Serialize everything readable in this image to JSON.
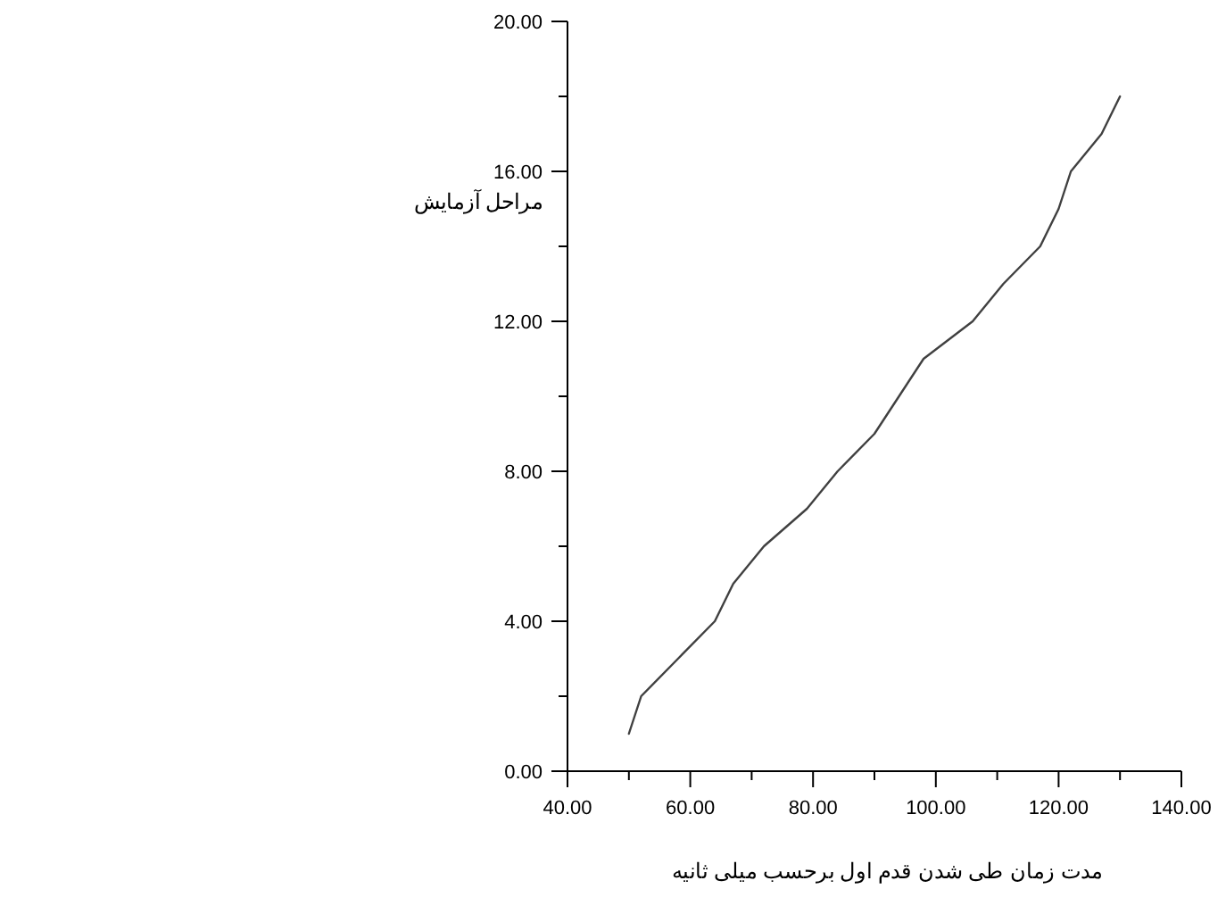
{
  "chart_data": {
    "type": "line",
    "xlabel": "مدت زمان طی شدن قدم اول برحسب میلی ثانیه",
    "ylabel": "مراحل آزمایش",
    "x": [
      50,
      52,
      58,
      64,
      67,
      72,
      79,
      84,
      90,
      94,
      98,
      106,
      111,
      117,
      120,
      122,
      127,
      130
    ],
    "series": [
      {
        "color": "#404040",
        "values": [
          1,
          2,
          3,
          4,
          5,
          6,
          7,
          8,
          9,
          10,
          11,
          12,
          13,
          14,
          15,
          16,
          17,
          18
        ]
      }
    ],
    "xlim": [
      40,
      140
    ],
    "xticks": [
      {
        "value": 40,
        "label": "40.00"
      },
      {
        "value": 50,
        "label": null
      },
      {
        "value": 60,
        "label": "60.00"
      },
      {
        "value": 70,
        "label": null
      },
      {
        "value": 80,
        "label": "80.00"
      },
      {
        "value": 90,
        "label": null
      },
      {
        "value": 100,
        "label": "100.00"
      },
      {
        "value": 110,
        "label": null
      },
      {
        "value": 120,
        "label": "120.00"
      },
      {
        "value": 130,
        "label": null
      },
      {
        "value": 140,
        "label": "140.00"
      }
    ],
    "ylim": [
      0,
      20
    ],
    "yticks": [
      {
        "value": 0,
        "label": "0.00"
      },
      {
        "value": 2,
        "label": null
      },
      {
        "value": 4,
        "label": "4.00"
      },
      {
        "value": 6,
        "label": null
      },
      {
        "value": 8,
        "label": "8.00"
      },
      {
        "value": 10,
        "label": null
      },
      {
        "value": 12,
        "label": "12.00"
      },
      {
        "value": 14,
        "label": null
      },
      {
        "value": 16,
        "label": "16.00"
      },
      {
        "value": 18,
        "label": null
      },
      {
        "value": 20,
        "label": "20.00"
      }
    ],
    "grid": false,
    "marker": "none",
    "line_style": "solid"
  }
}
